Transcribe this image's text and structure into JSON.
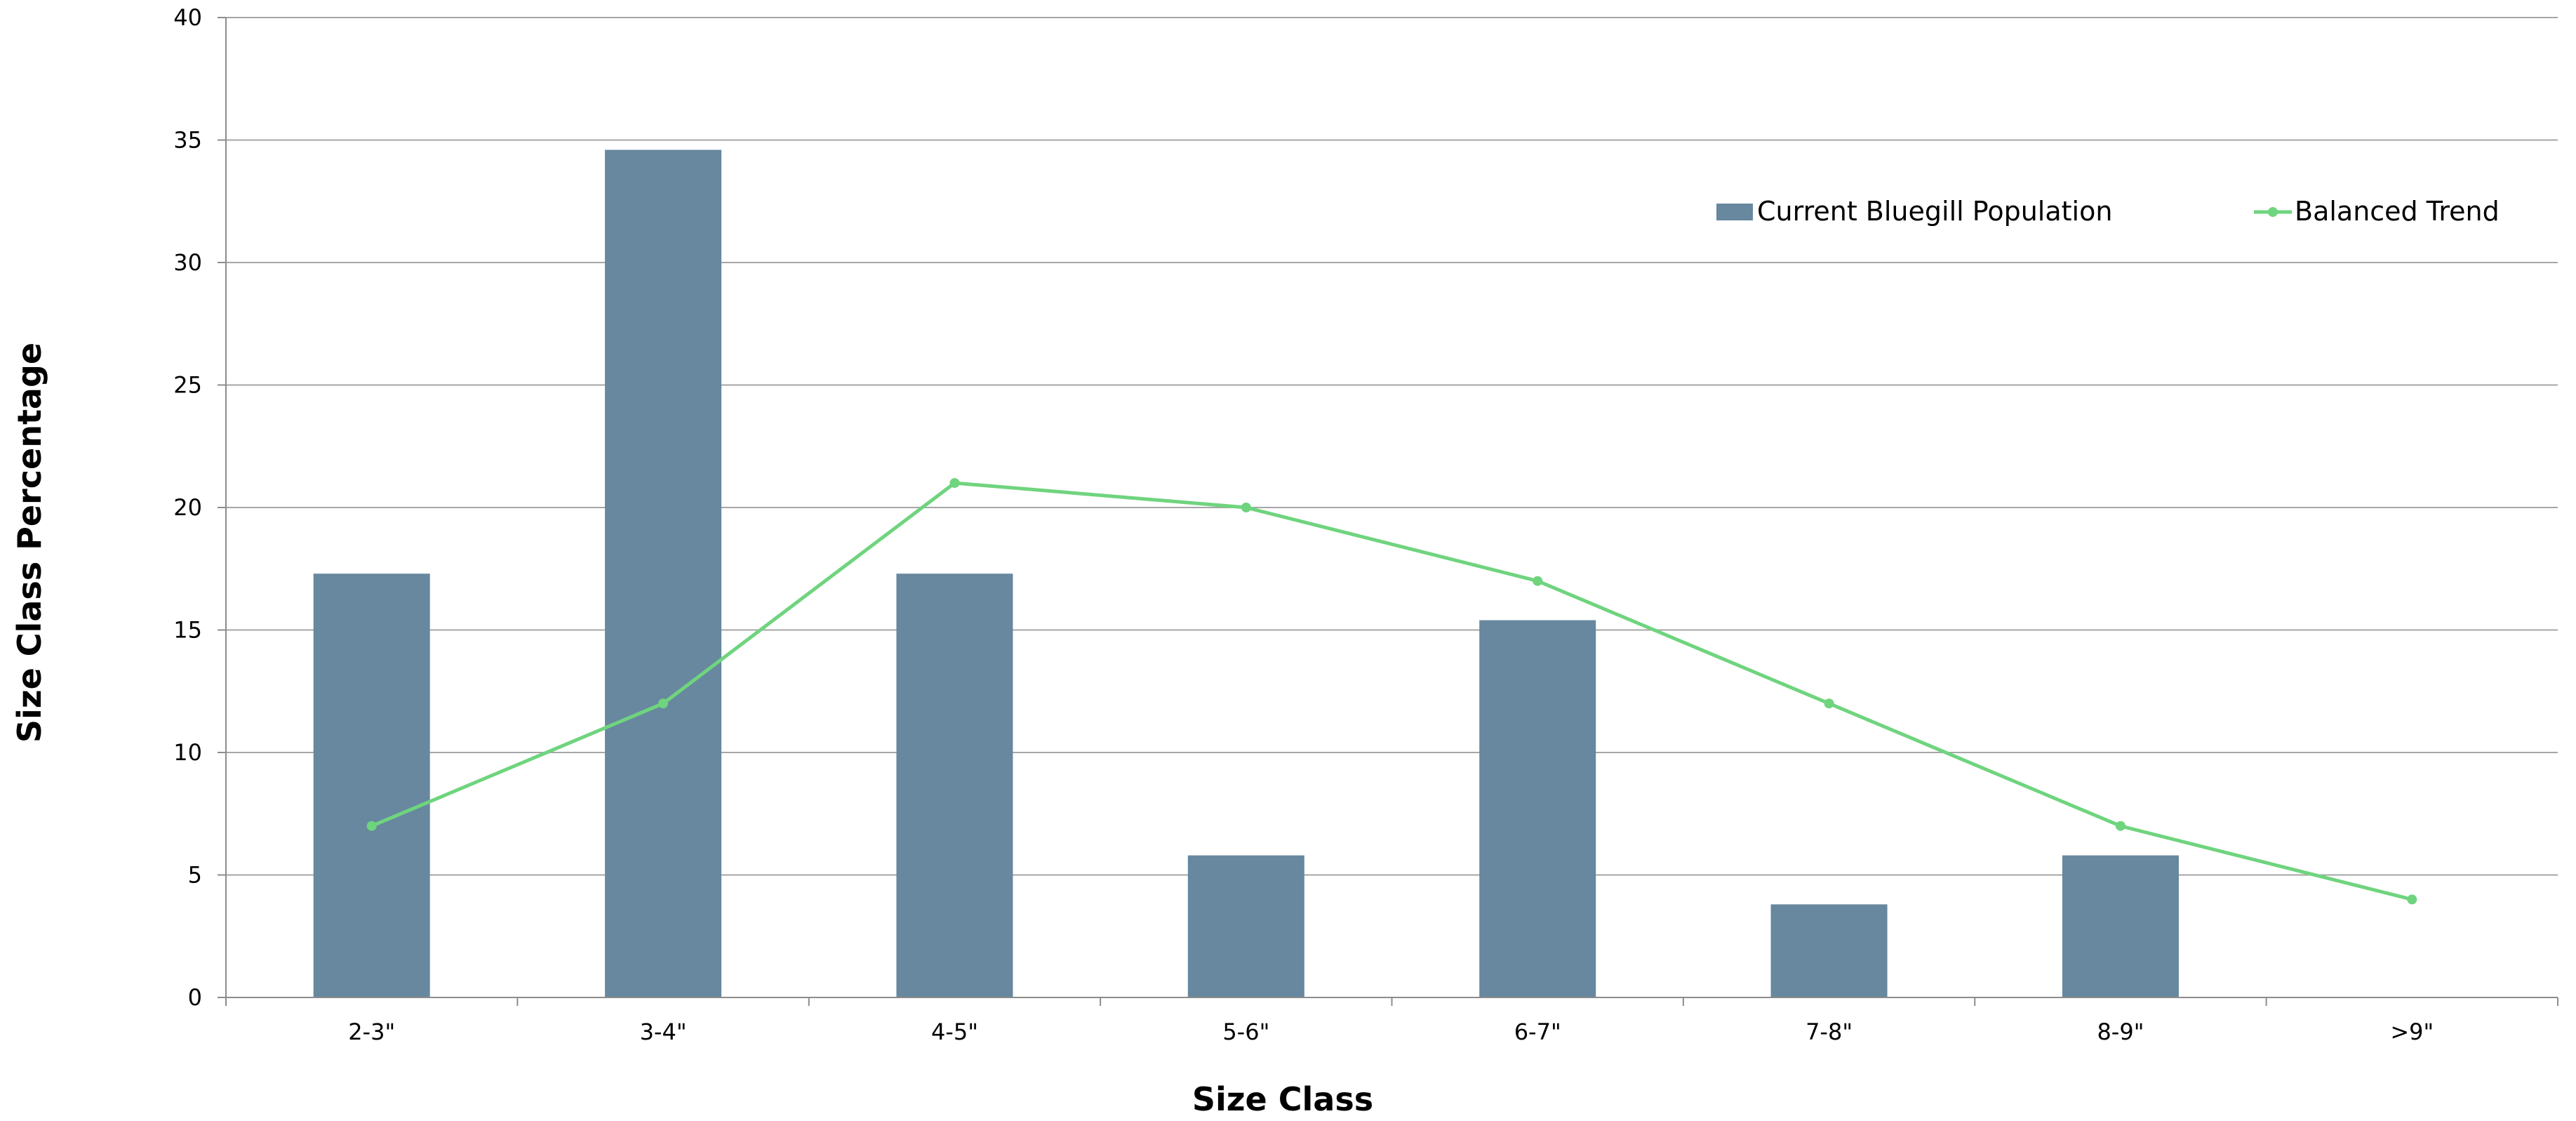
{
  "chart_data": {
    "type": "bar",
    "categories": [
      "2-3\"",
      "3-4\"",
      "4-5\"",
      "5-6\"",
      "6-7\"",
      "7-8\"",
      "8-9\"",
      ">9\""
    ],
    "series": [
      {
        "name": "Current Bluegill Population",
        "type": "bar",
        "color": "#67889e",
        "values": [
          17.3,
          34.6,
          17.3,
          5.8,
          15.4,
          3.8,
          5.8,
          0
        ]
      },
      {
        "name": "Balanced Trend",
        "type": "line",
        "color": "#6fd47e",
        "values": [
          7,
          12,
          21,
          20,
          17,
          12,
          7,
          4
        ]
      }
    ],
    "xlabel": "Size Class",
    "ylabel": "Size Class Percentage",
    "ylim": [
      0,
      40
    ],
    "yticks": [
      0,
      5,
      10,
      15,
      20,
      25,
      30,
      35,
      40
    ],
    "grid": true,
    "legend_position": "top-right"
  }
}
